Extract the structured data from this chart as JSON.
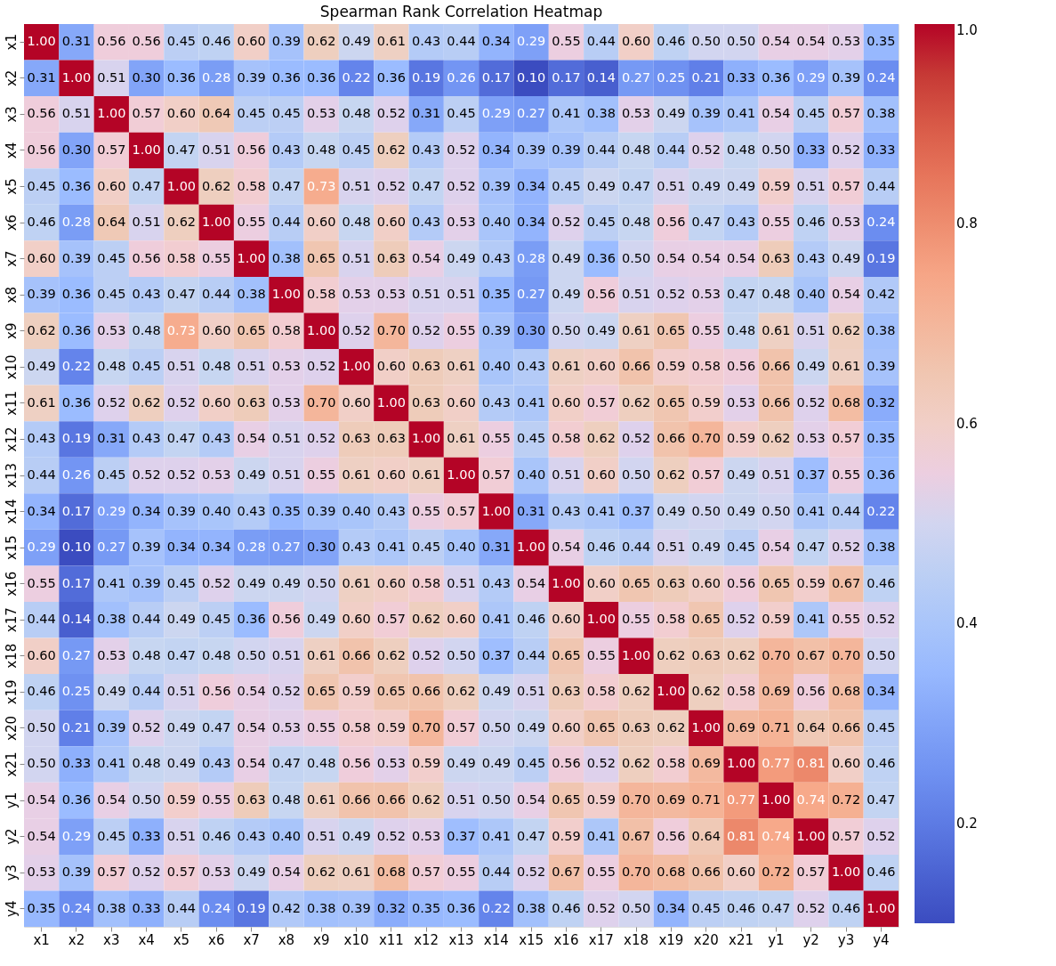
{
  "chart_data": {
    "type": "heatmap",
    "title": "Spearman Rank Correlation Heatmap",
    "categories": [
      "x1",
      "x2",
      "x3",
      "x4",
      "x5",
      "x6",
      "x7",
      "x8",
      "x9",
      "x10",
      "x11",
      "x12",
      "x13",
      "x14",
      "x15",
      "x16",
      "x17",
      "x18",
      "x19",
      "x20",
      "x21",
      "y1",
      "y2",
      "y3",
      "y4"
    ],
    "y_categories": [
      "x1",
      "x2",
      "x3",
      "x4",
      "x5",
      "x6",
      "x7",
      "x8",
      "x9",
      "x10",
      "x11",
      "x12",
      "x13",
      "x14",
      "x15",
      "x16",
      "x17",
      "x18",
      "x19",
      "x20",
      "x21",
      "y1",
      "y2",
      "y3",
      "y4"
    ],
    "cells": [
      [
        1.0,
        0.31,
        0.56,
        0.56,
        0.45,
        0.46,
        0.6,
        0.39,
        0.62,
        0.49,
        0.61,
        0.43,
        0.44,
        0.34,
        0.29,
        0.55,
        0.44,
        0.6,
        0.46,
        0.5,
        0.5,
        0.54,
        0.54,
        0.53,
        0.35
      ],
      [
        0.31,
        1.0,
        0.51,
        0.3,
        0.36,
        0.28,
        0.39,
        0.36,
        0.36,
        0.22,
        0.36,
        0.19,
        0.26,
        0.17,
        0.1,
        0.17,
        0.14,
        0.27,
        0.25,
        0.21,
        0.33,
        0.36,
        0.29,
        0.39,
        0.24
      ],
      [
        0.56,
        0.51,
        1.0,
        0.57,
        0.6,
        0.64,
        0.45,
        0.45,
        0.53,
        0.48,
        0.52,
        0.31,
        0.45,
        0.29,
        0.27,
        0.41,
        0.38,
        0.53,
        0.49,
        0.39,
        0.41,
        0.54,
        0.45,
        0.57,
        0.38
      ],
      [
        0.56,
        0.3,
        0.57,
        1.0,
        0.47,
        0.51,
        0.56,
        0.43,
        0.48,
        0.45,
        0.62,
        0.43,
        0.52,
        0.34,
        0.39,
        0.39,
        0.44,
        0.48,
        0.44,
        0.52,
        0.48,
        0.5,
        0.33,
        0.52,
        0.33
      ],
      [
        0.45,
        0.36,
        0.6,
        0.47,
        1.0,
        0.62,
        0.58,
        0.47,
        0.73,
        0.51,
        0.52,
        0.47,
        0.52,
        0.39,
        0.34,
        0.45,
        0.49,
        0.47,
        0.51,
        0.49,
        0.49,
        0.59,
        0.51,
        0.57,
        0.44
      ],
      [
        0.46,
        0.28,
        0.64,
        0.51,
        0.62,
        1.0,
        0.55,
        0.44,
        0.6,
        0.48,
        0.6,
        0.43,
        0.53,
        0.4,
        0.34,
        0.52,
        0.45,
        0.48,
        0.56,
        0.47,
        0.43,
        0.55,
        0.46,
        0.53,
        0.24
      ],
      [
        0.6,
        0.39,
        0.45,
        0.56,
        0.58,
        0.55,
        1.0,
        0.38,
        0.65,
        0.51,
        0.63,
        0.54,
        0.49,
        0.43,
        0.28,
        0.49,
        0.36,
        0.5,
        0.54,
        0.54,
        0.54,
        0.63,
        0.43,
        0.49,
        0.19
      ],
      [
        0.39,
        0.36,
        0.45,
        0.43,
        0.47,
        0.44,
        0.38,
        1.0,
        0.58,
        0.53,
        0.53,
        0.51,
        0.51,
        0.35,
        0.27,
        0.49,
        0.56,
        0.51,
        0.52,
        0.53,
        0.47,
        0.48,
        0.4,
        0.54,
        0.42
      ],
      [
        0.62,
        0.36,
        0.53,
        0.48,
        0.73,
        0.6,
        0.65,
        0.58,
        1.0,
        0.52,
        0.7,
        0.52,
        0.55,
        0.39,
        0.3,
        0.5,
        0.49,
        0.61,
        0.65,
        0.55,
        0.48,
        0.61,
        0.51,
        0.62,
        0.38
      ],
      [
        0.49,
        0.22,
        0.48,
        0.45,
        0.51,
        0.48,
        0.51,
        0.53,
        0.52,
        1.0,
        0.6,
        0.63,
        0.61,
        0.4,
        0.43,
        0.61,
        0.6,
        0.66,
        0.59,
        0.58,
        0.56,
        0.66,
        0.49,
        0.61,
        0.39
      ],
      [
        0.61,
        0.36,
        0.52,
        0.62,
        0.52,
        0.6,
        0.63,
        0.53,
        0.7,
        0.6,
        1.0,
        0.63,
        0.6,
        0.43,
        0.41,
        0.6,
        0.57,
        0.62,
        0.65,
        0.59,
        0.53,
        0.66,
        0.52,
        0.68,
        0.32
      ],
      [
        0.43,
        0.19,
        0.31,
        0.43,
        0.47,
        0.43,
        0.54,
        0.51,
        0.52,
        0.63,
        0.63,
        1.0,
        0.61,
        0.55,
        0.45,
        0.58,
        0.62,
        0.52,
        0.66,
        0.7,
        0.59,
        0.62,
        0.53,
        0.57,
        0.35
      ],
      [
        0.44,
        0.26,
        0.45,
        0.52,
        0.52,
        0.53,
        0.49,
        0.51,
        0.55,
        0.61,
        0.6,
        0.61,
        1.0,
        0.57,
        0.4,
        0.51,
        0.6,
        0.5,
        0.62,
        0.57,
        0.49,
        0.51,
        0.37,
        0.55,
        0.36
      ],
      [
        0.34,
        0.17,
        0.29,
        0.34,
        0.39,
        0.4,
        0.43,
        0.35,
        0.39,
        0.4,
        0.43,
        0.55,
        0.57,
        1.0,
        0.31,
        0.43,
        0.41,
        0.37,
        0.49,
        0.5,
        0.49,
        0.5,
        0.41,
        0.44,
        0.22
      ],
      [
        0.29,
        0.1,
        0.27,
        0.39,
        0.34,
        0.34,
        0.28,
        0.27,
        0.3,
        0.43,
        0.41,
        0.45,
        0.4,
        0.31,
        1.0,
        0.54,
        0.46,
        0.44,
        0.51,
        0.49,
        0.45,
        0.54,
        0.47,
        0.52,
        0.38
      ],
      [
        0.55,
        0.17,
        0.41,
        0.39,
        0.45,
        0.52,
        0.49,
        0.49,
        0.5,
        0.61,
        0.6,
        0.58,
        0.51,
        0.43,
        0.54,
        1.0,
        0.6,
        0.65,
        0.63,
        0.6,
        0.56,
        0.65,
        0.59,
        0.67,
        0.46
      ],
      [
        0.44,
        0.14,
        0.38,
        0.44,
        0.49,
        0.45,
        0.36,
        0.56,
        0.49,
        0.6,
        0.57,
        0.62,
        0.6,
        0.41,
        0.46,
        0.6,
        1.0,
        0.55,
        0.58,
        0.65,
        0.52,
        0.59,
        0.41,
        0.55,
        0.52
      ],
      [
        0.6,
        0.27,
        0.53,
        0.48,
        0.47,
        0.48,
        0.5,
        0.51,
        0.61,
        0.66,
        0.62,
        0.52,
        0.5,
        0.37,
        0.44,
        0.65,
        0.55,
        1.0,
        0.62,
        0.63,
        0.62,
        0.7,
        0.67,
        0.7,
        0.5
      ],
      [
        0.46,
        0.25,
        0.49,
        0.44,
        0.51,
        0.56,
        0.54,
        0.52,
        0.65,
        0.59,
        0.65,
        0.66,
        0.62,
        0.49,
        0.51,
        0.63,
        0.58,
        0.62,
        1.0,
        0.62,
        0.58,
        0.69,
        0.56,
        0.68,
        0.34
      ],
      [
        0.5,
        0.21,
        0.39,
        0.52,
        0.49,
        0.47,
        0.54,
        0.53,
        0.55,
        0.58,
        0.59,
        0.7,
        0.57,
        0.5,
        0.49,
        0.6,
        0.65,
        0.63,
        0.62,
        1.0,
        0.69,
        0.71,
        0.64,
        0.66,
        0.45
      ],
      [
        0.5,
        0.33,
        0.41,
        0.48,
        0.49,
        0.43,
        0.54,
        0.47,
        0.48,
        0.56,
        0.53,
        0.59,
        0.49,
        0.49,
        0.45,
        0.56,
        0.52,
        0.62,
        0.58,
        0.69,
        1.0,
        0.77,
        0.81,
        0.6,
        0.46
      ],
      [
        0.54,
        0.36,
        0.54,
        0.5,
        0.59,
        0.55,
        0.63,
        0.48,
        0.61,
        0.66,
        0.66,
        0.62,
        0.51,
        0.5,
        0.54,
        0.65,
        0.59,
        0.7,
        0.69,
        0.71,
        0.77,
        1.0,
        0.74,
        0.72,
        0.47
      ],
      [
        0.54,
        0.29,
        0.45,
        0.33,
        0.51,
        0.46,
        0.43,
        0.4,
        0.51,
        0.49,
        0.52,
        0.53,
        0.37,
        0.41,
        0.47,
        0.59,
        0.41,
        0.67,
        0.56,
        0.64,
        0.81,
        0.74,
        1.0,
        0.57,
        0.52
      ],
      [
        0.53,
        0.39,
        0.57,
        0.52,
        0.57,
        0.53,
        0.49,
        0.54,
        0.62,
        0.61,
        0.68,
        0.57,
        0.55,
        0.44,
        0.52,
        0.67,
        0.55,
        0.7,
        0.68,
        0.66,
        0.6,
        0.72,
        0.57,
        1.0,
        0.46
      ],
      [
        0.35,
        0.24,
        0.38,
        0.33,
        0.44,
        0.24,
        0.19,
        0.42,
        0.38,
        0.39,
        0.32,
        0.35,
        0.36,
        0.22,
        0.38,
        0.46,
        0.52,
        0.5,
        0.34,
        0.45,
        0.46,
        0.47,
        0.52,
        0.46,
        1.0
      ]
    ],
    "cell_labels": [
      [
        "1.00",
        "0.31",
        "0.56",
        "0.56",
        "0.45",
        "0.46",
        "0.60",
        "0.39",
        "0.62",
        "0.49",
        "0.61",
        "0.43",
        "0.44",
        "0.34",
        "0.29",
        "0.55",
        "0.44",
        "0.60",
        "0.46",
        "0.50",
        "0.50",
        "0.54",
        "0.54",
        "0.53",
        "0.35"
      ],
      [
        "0.31",
        "1.00",
        "0.51",
        "0.30",
        "0.36",
        "0.28",
        "0.39",
        "0.36",
        "0.36",
        "0.22",
        "0.36",
        "0.19",
        "0.26",
        "0.17",
        "0.10",
        "0.17",
        "0.14",
        "0.27",
        "0.25",
        "0.21",
        "0.33",
        "0.36",
        "0.29",
        "0.39",
        "0.24"
      ],
      [
        "0.56",
        "0.51",
        "1.00",
        "0.57",
        "0.60",
        "0.64",
        "0.45",
        "0.45",
        "0.53",
        "0.48",
        "0.52",
        "0.31",
        "0.45",
        "0.29",
        "0.27",
        "0.41",
        "0.38",
        "0.53",
        "0.49",
        "0.39",
        "0.41",
        "0.54",
        "0.45",
        "0.57",
        "0.38"
      ],
      [
        "0.56",
        "0.30",
        "0.57",
        "1.00",
        "0.47",
        "0.51",
        "0.56",
        "0.43",
        "0.48",
        "0.45",
        "0.62",
        "0.43",
        "0.52",
        "0.34",
        "0.39",
        "0.39",
        "0.44",
        "0.48",
        "0.44",
        "0.52",
        "0.48",
        "0.50",
        "0.33",
        "0.52",
        "0.33"
      ],
      [
        "0.45",
        "0.36",
        "0.60",
        "0.47",
        "1.00",
        "0.62",
        "0.58",
        "0.47",
        "0.73",
        "0.51",
        "0.52",
        "0.47",
        "0.52",
        "0.39",
        "0.34",
        "0.45",
        "0.49",
        "0.47",
        "0.51",
        "0.49",
        "0.49",
        "0.59",
        "0.51",
        "0.57",
        "0.44"
      ],
      [
        "0.46",
        "0.28",
        "0.64",
        "0.51",
        "0.62",
        "1.00",
        "0.55",
        "0.44",
        "0.60",
        "0.48",
        "0.60",
        "0.43",
        "0.53",
        "0.40",
        "0.34",
        "0.52",
        "0.45",
        "0.48",
        "0.56",
        "0.47",
        "0.43",
        "0.55",
        "0.46",
        "0.53",
        "0.24"
      ],
      [
        "0.60",
        "0.39",
        "0.45",
        "0.56",
        "0.58",
        "0.55",
        "1.00",
        "0.38",
        "0.65",
        "0.51",
        "0.63",
        "0.54",
        "0.49",
        "0.43",
        "0.28",
        "0.49",
        "0.36",
        "0.50",
        "0.54",
        "0.54",
        "0.54",
        "0.63",
        "0.43",
        "0.49",
        "0.19"
      ],
      [
        "0.39",
        "0.36",
        "0.45",
        "0.43",
        "0.47",
        "0.44",
        "0.38",
        "1.00",
        "0.58",
        "0.53",
        "0.53",
        "0.51",
        "0.51",
        "0.35",
        "0.27",
        "0.49",
        "0.56",
        "0.51",
        "0.52",
        "0.53",
        "0.47",
        "0.48",
        "0.40",
        "0.54",
        "0.42"
      ],
      [
        "0.62",
        "0.36",
        "0.53",
        "0.48",
        "0.73",
        "0.60",
        "0.65",
        "0.58",
        "1.00",
        "0.52",
        "0.70",
        "0.52",
        "0.55",
        "0.39",
        "0.30",
        "0.50",
        "0.49",
        "0.61",
        "0.65",
        "0.55",
        "0.48",
        "0.61",
        "0.51",
        "0.62",
        "0.38"
      ],
      [
        "0.49",
        "0.22",
        "0.48",
        "0.45",
        "0.51",
        "0.48",
        "0.51",
        "0.53",
        "0.52",
        "1.00",
        "0.60",
        "0.63",
        "0.61",
        "0.40",
        "0.43",
        "0.61",
        "0.60",
        "0.66",
        "0.59",
        "0.58",
        "0.56",
        "0.66",
        "0.49",
        "0.61",
        "0.39"
      ],
      [
        "0.61",
        "0.36",
        "0.52",
        "0.62",
        "0.52",
        "0.60",
        "0.63",
        "0.53",
        "0.70",
        "0.60",
        "1.00",
        "0.63",
        "0.60",
        "0.43",
        "0.41",
        "0.60",
        "0.57",
        "0.62",
        "0.65",
        "0.59",
        "0.53",
        "0.66",
        "0.52",
        "0.68",
        "0.32"
      ],
      [
        "0.43",
        "0.19",
        "0.31",
        "0.43",
        "0.47",
        "0.43",
        "0.54",
        "0.51",
        "0.52",
        "0.63",
        "0.63",
        "1.00",
        "0.61",
        "0.55",
        "0.45",
        "0.58",
        "0.62",
        "0.52",
        "0.66",
        "0.70",
        "0.59",
        "0.62",
        "0.53",
        "0.57",
        "0.35"
      ],
      [
        "0.44",
        "0.26",
        "0.45",
        "0.52",
        "0.52",
        "0.53",
        "0.49",
        "0.51",
        "0.55",
        "0.61",
        "0.60",
        "0.61",
        "1.00",
        "0.57",
        "0.40",
        "0.51",
        "0.60",
        "0.50",
        "0.62",
        "0.57",
        "0.49",
        "0.51",
        "0.37",
        "0.55",
        "0.36"
      ],
      [
        "0.34",
        "0.17",
        "0.29",
        "0.34",
        "0.39",
        "0.40",
        "0.43",
        "0.35",
        "0.39",
        "0.40",
        "0.43",
        "0.55",
        "0.57",
        "1.00",
        "0.31",
        "0.43",
        "0.41",
        "0.37",
        "0.49",
        "0.50",
        "0.49",
        "0.50",
        "0.41",
        "0.44",
        "0.22"
      ],
      [
        "0.29",
        "0.10",
        "0.27",
        "0.39",
        "0.34",
        "0.34",
        "0.28",
        "0.27",
        "0.30",
        "0.43",
        "0.41",
        "0.45",
        "0.40",
        "0.31",
        "1.00",
        "0.54",
        "0.46",
        "0.44",
        "0.51",
        "0.49",
        "0.45",
        "0.54",
        "0.47",
        "0.52",
        "0.38"
      ],
      [
        "0.55",
        "0.17",
        "0.41",
        "0.39",
        "0.45",
        "0.52",
        "0.49",
        "0.49",
        "0.50",
        "0.61",
        "0.60",
        "0.58",
        "0.51",
        "0.43",
        "0.54",
        "1.00",
        "0.60",
        "0.65",
        "0.63",
        "0.60",
        "0.56",
        "0.65",
        "0.59",
        "0.67",
        "0.46"
      ],
      [
        "0.44",
        "0.14",
        "0.38",
        "0.44",
        "0.49",
        "0.45",
        "0.36",
        "0.56",
        "0.49",
        "0.60",
        "0.57",
        "0.62",
        "0.60",
        "0.41",
        "0.46",
        "0.60",
        "1.00",
        "0.55",
        "0.58",
        "0.65",
        "0.52",
        "0.59",
        "0.41",
        "0.55",
        "0.52"
      ],
      [
        "0.60",
        "0.27",
        "0.53",
        "0.48",
        "0.47",
        "0.48",
        "0.50",
        "0.51",
        "0.61",
        "0.66",
        "0.62",
        "0.52",
        "0.50",
        "0.37",
        "0.44",
        "0.65",
        "0.55",
        "1.00",
        "0.62",
        "0.63",
        "0.62",
        "0.70",
        "0.67",
        "0.70",
        "0.50"
      ],
      [
        "0.46",
        "0.25",
        "0.49",
        "0.44",
        "0.51",
        "0.56",
        "0.54",
        "0.52",
        "0.65",
        "0.59",
        "0.65",
        "0.66",
        "0.62",
        "0.49",
        "0.51",
        "0.63",
        "0.58",
        "0.62",
        "1.00",
        "0.62",
        "0.58",
        "0.69",
        "0.56",
        "0.68",
        "0.34"
      ],
      [
        "0.50",
        "0.21",
        "0.39",
        "0.52",
        "0.49",
        "0.47",
        "0.54",
        "0.53",
        "0.55",
        "0.58",
        "0.59",
        "0.70",
        "0.57",
        "0.50",
        "0.49",
        "0.60",
        "0.65",
        "0.63",
        "0.62",
        "1.00",
        "0.69",
        "0.71",
        "0.64",
        "0.66",
        "0.45"
      ],
      [
        "0.50",
        "0.33",
        "0.41",
        "0.48",
        "0.49",
        "0.43",
        "0.54",
        "0.47",
        "0.48",
        "0.56",
        "0.53",
        "0.59",
        "0.49",
        "0.49",
        "0.45",
        "0.56",
        "0.52",
        "0.62",
        "0.58",
        "0.69",
        "1.00",
        "0.77",
        "0.81",
        "0.60",
        "0.46"
      ],
      [
        "0.54",
        "0.36",
        "0.54",
        "0.50",
        "0.59",
        "0.55",
        "0.63",
        "0.48",
        "0.61",
        "0.66",
        "0.66",
        "0.62",
        "0.51",
        "0.50",
        "0.54",
        "0.65",
        "0.59",
        "0.70",
        "0.69",
        "0.71",
        "0.77",
        "1.00",
        "0.74",
        "0.72",
        "0.47"
      ],
      [
        "0.54",
        "0.29",
        "0.45",
        "0.33",
        "0.51",
        "0.46",
        "0.43",
        "0.40",
        "0.51",
        "0.49",
        "0.52",
        "0.53",
        "0.37",
        "0.41",
        "0.47",
        "0.59",
        "0.41",
        "0.67",
        "0.56",
        "0.64",
        "0.81",
        "0.74",
        "1.00",
        "0.57",
        "0.52"
      ],
      [
        "0.53",
        "0.39",
        "0.57",
        "0.52",
        "0.57",
        "0.53",
        "0.49",
        "0.54",
        "0.62",
        "0.61",
        "0.68",
        "0.57",
        "0.55",
        "0.44",
        "0.52",
        "0.67",
        "0.55",
        "0.70",
        "0.68",
        "0.66",
        "0.60",
        "0.72",
        "0.57",
        "1.00",
        "0.46"
      ],
      [
        "0.35",
        "0.24",
        "0.38",
        "0.33",
        "0.44",
        "0.24",
        "0.19",
        "0.42",
        "0.38",
        "0.39",
        "0.32",
        "0.35",
        "0.36",
        "0.22",
        "0.38",
        "0.46",
        "0.52",
        "0.50",
        "0.34",
        "0.45",
        "0.46",
        "0.47",
        "0.52",
        "0.46",
        "1.00"
      ]
    ],
    "clim": [
      0.1,
      1.0
    ],
    "cticks": [
      0.2,
      0.4,
      0.6,
      0.8,
      {
        "value": 1.0,
        "label": "1.0"
      }
    ],
    "data_labels": true
  }
}
